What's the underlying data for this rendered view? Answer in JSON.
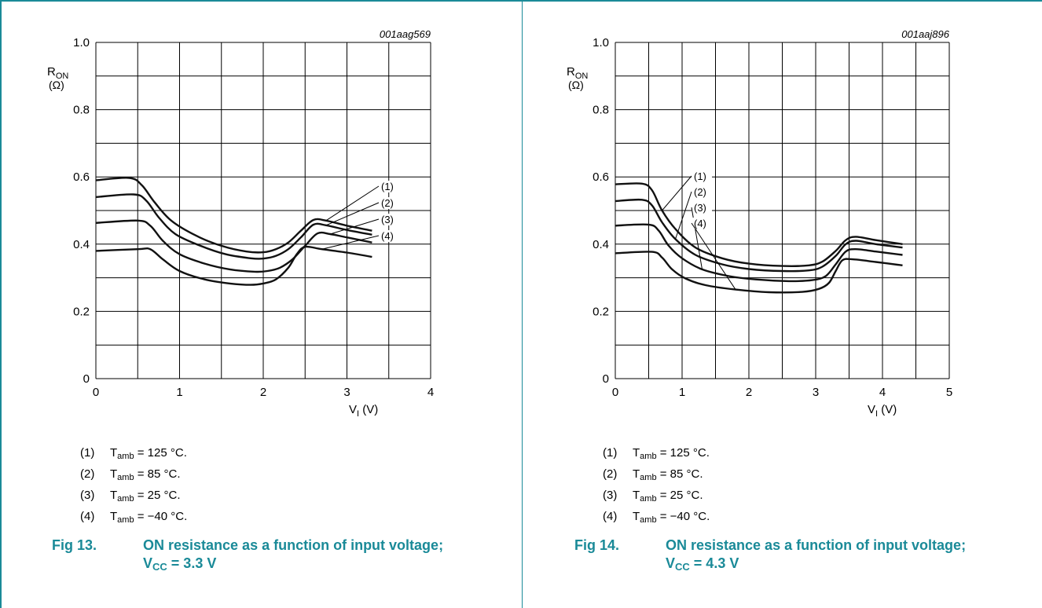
{
  "panels": [
    {
      "figure_label": "Fig 13.",
      "caption_text": "ON resistance as a function of input voltage;",
      "caption_vcc_symbol": "V",
      "caption_vcc_sub": "CC",
      "caption_vcc_value": " = 3.3 V",
      "chart_id": "001aag569",
      "legend": [
        {
          "num": "(1)",
          "symbol": "T",
          "sub": "amb",
          "value": " = 125 °C."
        },
        {
          "num": "(2)",
          "symbol": "T",
          "sub": "amb",
          "value": " = 85 °C."
        },
        {
          "num": "(3)",
          "symbol": "T",
          "sub": "amb",
          "value": " = 25 °C."
        },
        {
          "num": "(4)",
          "symbol": "T",
          "sub": "amb",
          "value": " = −40 °C."
        }
      ]
    },
    {
      "figure_label": "Fig 14.",
      "caption_text": "ON resistance as a function of input voltage;",
      "caption_vcc_symbol": "V",
      "caption_vcc_sub": "CC",
      "caption_vcc_value": " = 4.3 V",
      "chart_id": "001aaj896",
      "legend": [
        {
          "num": "(1)",
          "symbol": "T",
          "sub": "amb",
          "value": " = 125 °C."
        },
        {
          "num": "(2)",
          "symbol": "T",
          "sub": "amb",
          "value": " = 85 °C."
        },
        {
          "num": "(3)",
          "symbol": "T",
          "sub": "amb",
          "value": " = 25 °C."
        },
        {
          "num": "(4)",
          "symbol": "T",
          "sub": "amb",
          "value": " = −40 °C."
        }
      ]
    }
  ],
  "chart_data": [
    {
      "type": "line",
      "id_label": "001aag569",
      "xlabel": {
        "symbol": "V",
        "sub": "I",
        "unit": " (V)"
      },
      "ylabel": {
        "symbol": "R",
        "sub": "ON",
        "unit": "(Ω)"
      },
      "xlim": [
        0,
        4
      ],
      "ylim": [
        0,
        1.0
      ],
      "x_ticks": [
        "0",
        "1",
        "2",
        "3",
        "4"
      ],
      "y_ticks": [
        "0",
        "0.2",
        "0.4",
        "0.6",
        "0.8",
        "1.0"
      ],
      "grid": true,
      "series": [
        {
          "name": "(1)",
          "x": [
            0,
            0.4,
            0.55,
            0.7,
            0.9,
            1.2,
            1.5,
            1.8,
            2.0,
            2.15,
            2.3,
            2.45,
            2.6,
            2.75,
            3.0,
            3.3
          ],
          "y": [
            0.59,
            0.597,
            0.575,
            0.525,
            0.47,
            0.425,
            0.395,
            0.378,
            0.376,
            0.385,
            0.405,
            0.44,
            0.472,
            0.47,
            0.455,
            0.44
          ]
        },
        {
          "name": "(2)",
          "x": [
            0,
            0.45,
            0.6,
            0.75,
            0.95,
            1.25,
            1.55,
            1.85,
            2.0,
            2.15,
            2.3,
            2.45,
            2.6,
            2.75,
            3.0,
            3.3
          ],
          "y": [
            0.54,
            0.548,
            0.53,
            0.48,
            0.43,
            0.395,
            0.37,
            0.358,
            0.357,
            0.365,
            0.385,
            0.42,
            0.458,
            0.456,
            0.442,
            0.428
          ]
        },
        {
          "name": "(3)",
          "x": [
            0,
            0.5,
            0.65,
            0.8,
            1.0,
            1.3,
            1.6,
            1.9,
            2.05,
            2.2,
            2.35,
            2.5,
            2.65,
            2.8,
            3.0,
            3.3
          ],
          "y": [
            0.463,
            0.47,
            0.455,
            0.41,
            0.37,
            0.342,
            0.325,
            0.318,
            0.32,
            0.33,
            0.355,
            0.395,
            0.432,
            0.43,
            0.42,
            0.405
          ]
        },
        {
          "name": "(4)",
          "x": [
            0,
            0.5,
            0.65,
            0.8,
            1.0,
            1.3,
            1.6,
            1.85,
            2.0,
            2.15,
            2.3,
            2.4,
            2.5,
            2.7,
            3.0,
            3.3
          ],
          "y": [
            0.38,
            0.385,
            0.385,
            0.355,
            0.32,
            0.295,
            0.283,
            0.279,
            0.283,
            0.295,
            0.33,
            0.37,
            0.392,
            0.385,
            0.375,
            0.362
          ]
        }
      ]
    },
    {
      "type": "line",
      "id_label": "001aaj896",
      "xlabel": {
        "symbol": "V",
        "sub": "I",
        "unit": " (V)"
      },
      "ylabel": {
        "symbol": "R",
        "sub": "ON",
        "unit": "(Ω)"
      },
      "xlim": [
        0,
        5
      ],
      "ylim": [
        0,
        1.0
      ],
      "x_ticks": [
        "0",
        "1",
        "2",
        "3",
        "4",
        "5"
      ],
      "y_ticks": [
        "0",
        "0.2",
        "0.4",
        "0.6",
        "0.8",
        "1.0"
      ],
      "grid": true,
      "series": [
        {
          "name": "(1)",
          "x": [
            0,
            0.4,
            0.55,
            0.7,
            0.9,
            1.2,
            1.6,
            2.0,
            2.5,
            2.9,
            3.1,
            3.3,
            3.45,
            3.6,
            3.9,
            4.3
          ],
          "y": [
            0.578,
            0.58,
            0.56,
            0.5,
            0.445,
            0.39,
            0.358,
            0.342,
            0.335,
            0.337,
            0.348,
            0.38,
            0.412,
            0.422,
            0.412,
            0.4
          ]
        },
        {
          "name": "(2)",
          "x": [
            0,
            0.4,
            0.55,
            0.7,
            0.9,
            1.2,
            1.6,
            2.0,
            2.5,
            2.9,
            3.1,
            3.3,
            3.45,
            3.6,
            3.9,
            4.3
          ],
          "y": [
            0.528,
            0.532,
            0.515,
            0.465,
            0.415,
            0.368,
            0.34,
            0.326,
            0.32,
            0.322,
            0.333,
            0.365,
            0.4,
            0.41,
            0.4,
            0.39
          ]
        },
        {
          "name": "(3)",
          "x": [
            0,
            0.5,
            0.65,
            0.8,
            1.0,
            1.3,
            1.7,
            2.1,
            2.6,
            2.95,
            3.15,
            3.3,
            3.45,
            3.6,
            3.9,
            4.3
          ],
          "y": [
            0.455,
            0.458,
            0.44,
            0.395,
            0.358,
            0.325,
            0.305,
            0.295,
            0.29,
            0.293,
            0.305,
            0.34,
            0.378,
            0.385,
            0.378,
            0.368
          ]
        },
        {
          "name": "(4)",
          "x": [
            0,
            0.55,
            0.7,
            0.85,
            1.05,
            1.35,
            1.8,
            2.3,
            2.8,
            3.05,
            3.2,
            3.3,
            3.4,
            3.55,
            3.9,
            4.3
          ],
          "y": [
            0.373,
            0.377,
            0.36,
            0.325,
            0.298,
            0.278,
            0.265,
            0.257,
            0.258,
            0.267,
            0.285,
            0.32,
            0.352,
            0.355,
            0.347,
            0.337
          ]
        }
      ]
    }
  ]
}
